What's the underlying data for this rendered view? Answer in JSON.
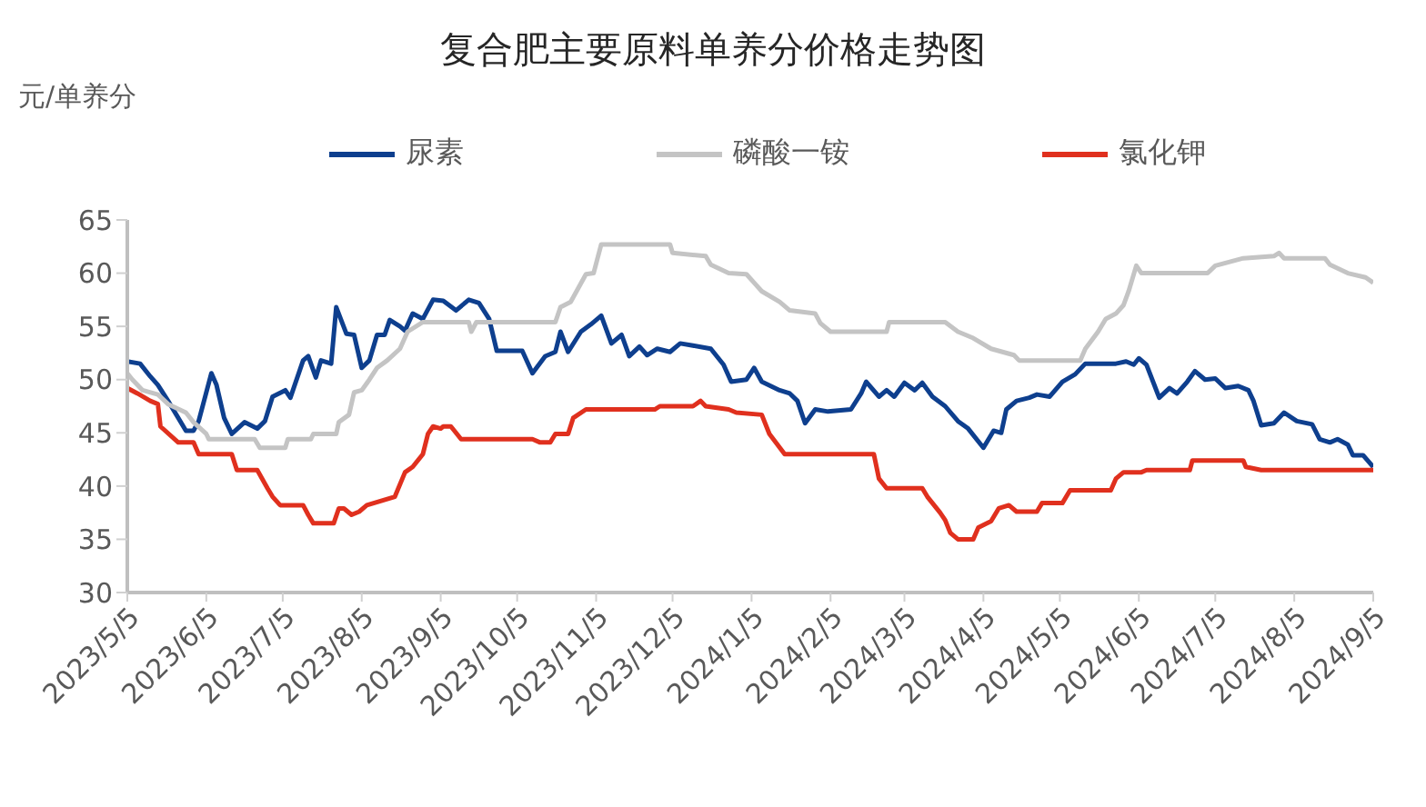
{
  "chart_data": {
    "type": "line",
    "title": "复合肥主要原料单养分价格走势图",
    "ylabel": "元/单养分",
    "legend": "top",
    "grid": false,
    "marker": "none",
    "line_style": "solid",
    "ylim": [
      30,
      65
    ],
    "yticks": [
      30,
      35,
      40,
      45,
      50,
      55,
      60,
      65
    ],
    "xlim": [
      "2023-05-05",
      "2024-09-05"
    ],
    "xticks": [
      {
        "value": "2023-05-05",
        "label": "2023/5/5"
      },
      {
        "value": "2023-06-05",
        "label": "2023/6/5"
      },
      {
        "value": "2023-07-05",
        "label": "2023/7/5"
      },
      {
        "value": "2023-08-05",
        "label": "2023/8/5"
      },
      {
        "value": "2023-09-05",
        "label": "2023/9/5"
      },
      {
        "value": "2023-10-05",
        "label": "2023/10/5"
      },
      {
        "value": "2023-11-05",
        "label": "2023/11/5"
      },
      {
        "value": "2023-12-05",
        "label": "2023/12/5"
      },
      {
        "value": "2024-01-05",
        "label": "2024/1/5"
      },
      {
        "value": "2024-02-05",
        "label": "2024/2/5"
      },
      {
        "value": "2024-03-05",
        "label": "2024/3/5"
      },
      {
        "value": "2024-04-05",
        "label": "2024/4/5"
      },
      {
        "value": "2024-05-05",
        "label": "2024/5/5"
      },
      {
        "value": "2024-06-05",
        "label": "2024/6/5"
      },
      {
        "value": "2024-07-05",
        "label": "2024/7/5"
      },
      {
        "value": "2024-08-05",
        "label": "2024/8/5"
      },
      {
        "value": "2024-09-05",
        "label": "2024/9/5"
      }
    ],
    "series": [
      {
        "name": "尿素",
        "color": "#0e3f8e",
        "x": [
          "2023-05-05",
          "2023-05-10",
          "2023-05-14",
          "2023-05-17",
          "2023-05-21",
          "2023-05-28",
          "2023-05-31",
          "2023-06-02",
          "2023-06-07",
          "2023-06-09",
          "2023-06-12",
          "2023-06-15",
          "2023-06-20",
          "2023-06-25",
          "2023-06-28",
          "2023-07-01",
          "2023-07-06",
          "2023-07-08",
          "2023-07-13",
          "2023-07-15",
          "2023-07-18",
          "2023-07-20",
          "2023-07-24",
          "2023-07-26",
          "2023-07-30",
          "2023-08-02",
          "2023-08-05",
          "2023-08-08",
          "2023-08-11",
          "2023-08-14",
          "2023-08-16",
          "2023-08-20",
          "2023-08-22",
          "2023-08-25",
          "2023-08-29",
          "2023-09-02",
          "2023-09-06",
          "2023-09-11",
          "2023-09-16",
          "2023-09-20",
          "2023-09-24",
          "2023-09-27",
          "2023-10-07",
          "2023-10-11",
          "2023-10-16",
          "2023-10-20",
          "2023-10-22",
          "2023-10-25",
          "2023-10-30",
          "2023-11-03",
          "2023-11-07",
          "2023-11-11",
          "2023-11-15",
          "2023-11-18",
          "2023-11-22",
          "2023-11-25",
          "2023-11-29",
          "2023-12-04",
          "2023-12-08",
          "2023-12-13",
          "2023-12-20",
          "2023-12-25",
          "2023-12-28",
          "2024-01-03",
          "2024-01-06",
          "2024-01-09",
          "2024-01-16",
          "2024-01-20",
          "2024-01-23",
          "2024-01-26",
          "2024-01-30",
          "2024-02-04",
          "2024-02-13",
          "2024-02-17",
          "2024-02-19",
          "2024-02-24",
          "2024-02-27",
          "2024-03-01",
          "2024-03-05",
          "2024-03-09",
          "2024-03-12",
          "2024-03-16",
          "2024-03-21",
          "2024-03-26",
          "2024-03-30",
          "2024-04-05",
          "2024-04-09",
          "2024-04-12",
          "2024-04-14",
          "2024-04-18",
          "2024-04-23",
          "2024-04-26",
          "2024-05-01",
          "2024-05-06",
          "2024-05-11",
          "2024-05-15",
          "2024-05-22",
          "2024-05-27",
          "2024-05-31",
          "2024-06-03",
          "2024-06-05",
          "2024-06-08",
          "2024-06-13",
          "2024-06-17",
          "2024-06-20",
          "2024-06-24",
          "2024-06-27",
          "2024-07-01",
          "2024-07-05",
          "2024-07-09",
          "2024-07-14",
          "2024-07-18",
          "2024-07-20",
          "2024-07-23",
          "2024-07-28",
          "2024-08-01",
          "2024-08-06",
          "2024-08-12",
          "2024-08-15",
          "2024-08-19",
          "2024-08-22",
          "2024-08-26",
          "2024-08-28",
          "2024-09-01",
          "2024-09-05"
        ],
        "values": [
          51.7,
          51.5,
          50.3,
          49.5,
          48,
          45.2,
          45.2,
          46.1,
          50.6,
          49.5,
          46.4,
          44.9,
          46,
          45.4,
          46.1,
          48.4,
          49,
          48.3,
          51.8,
          52.2,
          50.2,
          51.8,
          51.5,
          56.8,
          54.3,
          54.2,
          51.1,
          51.8,
          54.2,
          54.2,
          55.6,
          55,
          54.6,
          56.2,
          55.7,
          57.5,
          57.4,
          56.5,
          57.5,
          57.2,
          55.7,
          52.7,
          52.7,
          50.6,
          52.2,
          52.6,
          54.5,
          52.6,
          54.5,
          55.2,
          56,
          53.4,
          54.2,
          52.2,
          53.1,
          52.3,
          52.9,
          52.6,
          53.4,
          53.2,
          52.9,
          51.4,
          49.8,
          50,
          51.1,
          49.8,
          49,
          48.7,
          48,
          45.9,
          47.2,
          47,
          47.2,
          48.7,
          49.8,
          48.4,
          49,
          48.4,
          49.7,
          49,
          49.7,
          48.4,
          47.5,
          46.1,
          45.4,
          43.6,
          45.2,
          45,
          47.2,
          48,
          48.3,
          48.6,
          48.4,
          49.8,
          50.5,
          51.5,
          51.5,
          51.5,
          51.7,
          51.4,
          52,
          51.4,
          48.3,
          49.2,
          48.7,
          49.8,
          50.8,
          50,
          50.1,
          49.2,
          49.4,
          49,
          48,
          45.7,
          45.9,
          46.9,
          46.1,
          45.8,
          44.4,
          44.1,
          44.4,
          43.9,
          42.9,
          42.9,
          41.8
        ]
      },
      {
        "name": "磷酸一铵",
        "color": "#c4c4c4",
        "x": [
          "2023-05-05",
          "2023-05-07",
          "2023-05-11",
          "2023-05-17",
          "2023-05-21",
          "2023-05-28",
          "2023-05-31",
          "2023-06-05",
          "2023-06-06",
          "2023-06-24",
          "2023-06-26",
          "2023-07-06",
          "2023-07-07",
          "2023-07-16",
          "2023-07-17",
          "2023-07-26",
          "2023-07-27",
          "2023-07-31",
          "2023-08-02",
          "2023-08-05",
          "2023-08-08",
          "2023-08-11",
          "2023-08-15",
          "2023-08-20",
          "2023-08-23",
          "2023-08-29",
          "2023-09-16",
          "2023-09-17",
          "2023-09-19",
          "2023-10-20",
          "2023-10-22",
          "2023-10-26",
          "2023-11-01",
          "2023-11-04",
          "2023-11-07",
          "2023-12-04",
          "2023-12-05",
          "2023-12-18",
          "2023-12-20",
          "2023-12-27",
          "2024-01-03",
          "2024-01-06",
          "2024-01-09",
          "2024-01-16",
          "2024-01-20",
          "2024-01-30",
          "2024-02-01",
          "2024-02-05",
          "2024-02-27",
          "2024-02-28",
          "2024-03-21",
          "2024-03-26",
          "2024-04-01",
          "2024-04-08",
          "2024-04-17",
          "2024-04-19",
          "2024-05-13",
          "2024-05-15",
          "2024-05-20",
          "2024-05-23",
          "2024-05-27",
          "2024-05-30",
          "2024-06-01",
          "2024-06-04",
          "2024-06-06",
          "2024-07-02",
          "2024-07-05",
          "2024-07-16",
          "2024-07-28",
          "2024-07-30",
          "2024-08-01",
          "2024-08-17",
          "2024-08-19",
          "2024-08-26",
          "2024-09-02",
          "2024-09-05"
        ],
        "values": [
          50.6,
          50,
          49,
          48.6,
          47.7,
          46.9,
          46,
          44.9,
          44.4,
          44.4,
          43.6,
          43.6,
          44.4,
          44.4,
          44.9,
          44.9,
          46,
          46.7,
          48.8,
          49,
          50,
          51.1,
          51.8,
          52.9,
          54.5,
          55.4,
          55.4,
          54.5,
          55.4,
          55.4,
          56.8,
          57.3,
          59.9,
          60,
          62.7,
          62.7,
          61.9,
          61.6,
          60.8,
          60,
          59.9,
          59.1,
          58.3,
          57.3,
          56.5,
          56.2,
          55.3,
          54.5,
          54.5,
          55.4,
          55.4,
          54.5,
          53.9,
          52.9,
          52.3,
          51.8,
          51.8,
          52.9,
          54.5,
          55.7,
          56.2,
          57,
          58.3,
          60.7,
          60,
          60,
          60.7,
          61.4,
          61.6,
          61.9,
          61.4,
          61.4,
          60.8,
          60,
          59.6,
          59.1
        ]
      },
      {
        "name": "氯化钾",
        "color": "#e0301e",
        "x": [
          "2023-05-05",
          "2023-05-09",
          "2023-05-14",
          "2023-05-17",
          "2023-05-18",
          "2023-05-25",
          "2023-05-31",
          "2023-06-02",
          "2023-06-15",
          "2023-06-17",
          "2023-06-25",
          "2023-06-29",
          "2023-07-01",
          "2023-07-04",
          "2023-07-13",
          "2023-07-15",
          "2023-07-17",
          "2023-07-25",
          "2023-07-27",
          "2023-07-29",
          "2023-08-01",
          "2023-08-04",
          "2023-08-07",
          "2023-08-18",
          "2023-08-22",
          "2023-08-25",
          "2023-08-29",
          "2023-08-31",
          "2023-09-02",
          "2023-09-05",
          "2023-09-06",
          "2023-09-09",
          "2023-09-13",
          "2023-10-11",
          "2023-10-14",
          "2023-10-18",
          "2023-10-20",
          "2023-10-25",
          "2023-10-27",
          "2023-11-01",
          "2023-11-28",
          "2023-11-30",
          "2023-12-13",
          "2023-12-16",
          "2023-12-18",
          "2023-12-27",
          "2023-12-30",
          "2024-01-09",
          "2024-01-12",
          "2024-01-18",
          "2024-02-22",
          "2024-02-24",
          "2024-02-27",
          "2024-03-12",
          "2024-03-14",
          "2024-03-16",
          "2024-03-19",
          "2024-03-21",
          "2024-03-23",
          "2024-03-26",
          "2024-04-01",
          "2024-04-03",
          "2024-04-08",
          "2024-04-11",
          "2024-04-15",
          "2024-04-18",
          "2024-04-26",
          "2024-04-28",
          "2024-05-06",
          "2024-05-09",
          "2024-05-25",
          "2024-05-27",
          "2024-05-30",
          "2024-06-06",
          "2024-06-08",
          "2024-06-25",
          "2024-06-26",
          "2024-07-16",
          "2024-07-17",
          "2024-07-23",
          "2024-09-05"
        ],
        "values": [
          49.2,
          48.7,
          48,
          47.7,
          45.6,
          44.1,
          44.1,
          43,
          43,
          41.5,
          41.5,
          39.8,
          39,
          38.2,
          38.2,
          37.3,
          36.5,
          36.5,
          37.9,
          37.9,
          37.3,
          37.6,
          38.2,
          39,
          41.3,
          41.8,
          43,
          44.9,
          45.6,
          45.4,
          45.6,
          45.6,
          44.4,
          44.4,
          44.1,
          44.1,
          44.9,
          44.9,
          46.4,
          47.2,
          47.2,
          47.5,
          47.5,
          48,
          47.5,
          47.2,
          46.9,
          46.7,
          44.9,
          43,
          43,
          40.7,
          39.8,
          39.8,
          39,
          38.4,
          37.5,
          36.8,
          35.6,
          35,
          35,
          36.1,
          36.7,
          37.9,
          38.2,
          37.6,
          37.6,
          38.4,
          38.4,
          39.6,
          39.6,
          40.7,
          41.3,
          41.3,
          41.5,
          41.5,
          42.4,
          42.4,
          41.8,
          41.5,
          41.5
        ]
      }
    ]
  }
}
